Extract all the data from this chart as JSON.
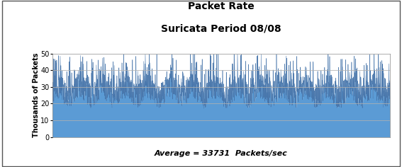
{
  "title_line1": "Packet Rate",
  "title_line2": "Suricata Period 08/08",
  "ylabel": "Thousands of Packets",
  "xlabel_annotation": "Average = 33731  Packets/sec",
  "ylim": [
    0,
    50
  ],
  "yticks": [
    0,
    10,
    20,
    30,
    40,
    50
  ],
  "average_value": 33.731,
  "fill_color": "#5B9BD5",
  "fill_edge_color": "#4472A8",
  "background_color": "#FFFFFF",
  "plot_bg_color": "#FFFFFF",
  "grid_color": "#B0B0B0",
  "title_fontsize": 10,
  "label_fontsize": 7,
  "annotation_fontsize": 8,
  "num_points": 2000,
  "seed": 99
}
